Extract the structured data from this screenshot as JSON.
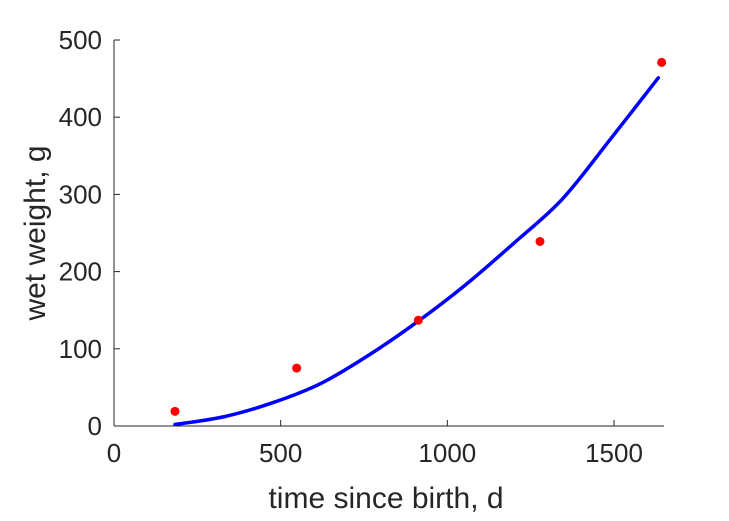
{
  "chart_data": {
    "type": "scatter",
    "title": "",
    "xlabel": "time since birth, d",
    "ylabel": "wet weight, g",
    "xlim": [
      0,
      1650
    ],
    "ylim": [
      0,
      500
    ],
    "xticks": [
      0,
      500,
      1000,
      1500
    ],
    "yticks": [
      0,
      100,
      200,
      300,
      400,
      500
    ],
    "grid": false,
    "legend": "none",
    "series": [
      {
        "kind": "points",
        "color": "#ff0000",
        "x": [
          183,
          548,
          913,
          1278,
          1643
        ],
        "y": [
          19,
          75,
          137,
          239,
          471
        ]
      },
      {
        "kind": "line",
        "color": "#0000ff",
        "x": [
          183,
          330,
          475,
          620,
          765,
          910,
          1055,
          1200,
          1345,
          1490,
          1633
        ],
        "y": [
          2,
          12,
          30,
          55,
          92,
          135,
          183,
          237,
          294,
          372,
          451
        ]
      }
    ]
  }
}
